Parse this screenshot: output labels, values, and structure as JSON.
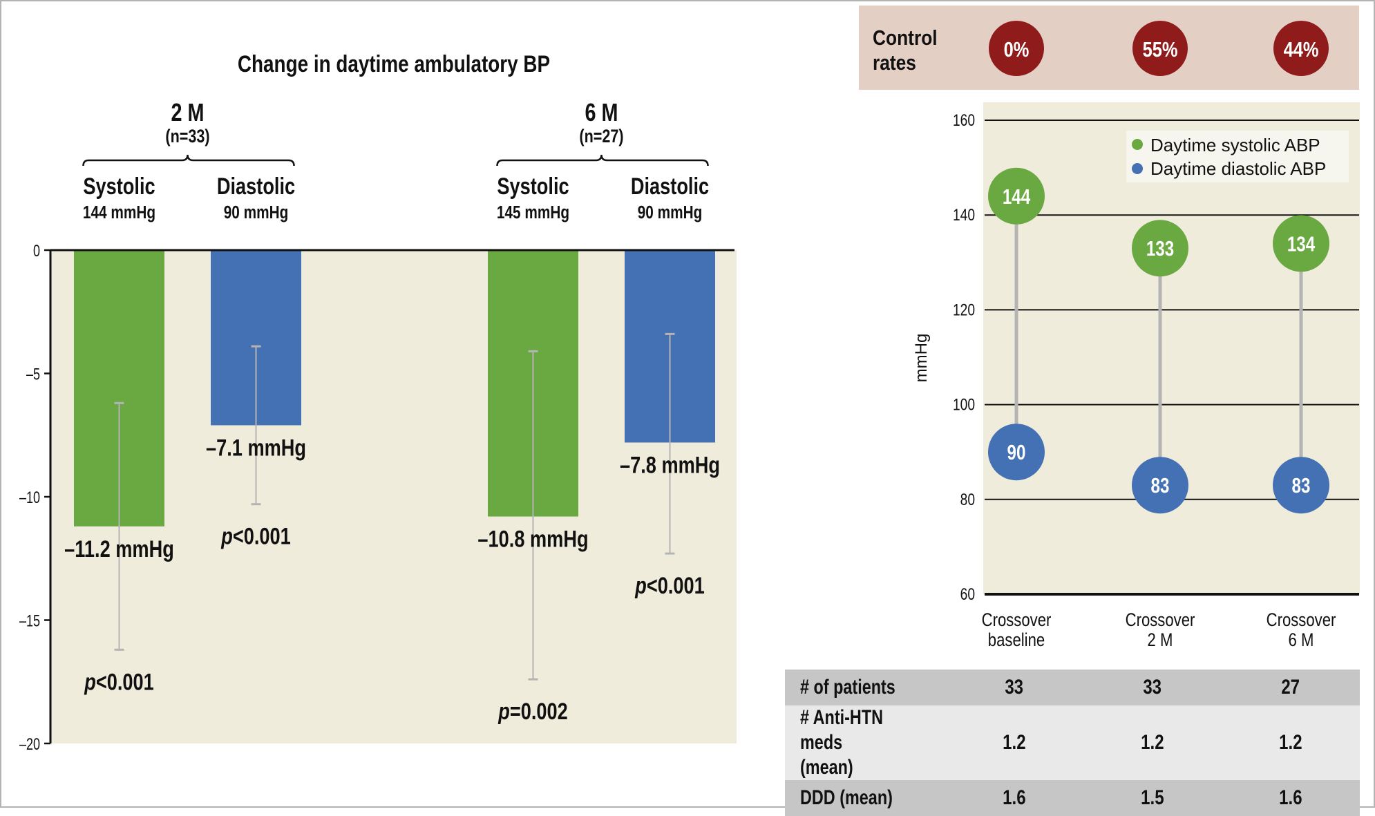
{
  "colors": {
    "systolic": "#6aa842",
    "diastolic": "#4470b4",
    "plot_bg": "#f0ecdb",
    "control_band": "#e4cfc4",
    "control_bubble": "#8f1b1b",
    "error_bar": "#b4b4b4",
    "legend_bg": "#f6f5ee"
  },
  "chart_data": [
    {
      "type": "bar",
      "title": "Change in daytime ambulatory BP",
      "ylabel": "",
      "ylim": [
        -20,
        0
      ],
      "yticks": [
        0,
        -5,
        -10,
        -15,
        -20
      ],
      "ytick_labels": [
        "0",
        "–5",
        "–10",
        "–15",
        "–20"
      ],
      "groups": [
        {
          "label": "2 M",
          "n_label": "(n=33)",
          "bars": [
            {
              "name": "Systolic",
              "baseline_label": "144 mmHg",
              "value": -11.2,
              "error_low": -16.2,
              "error_high": -6.2,
              "value_label": "–11.2 mmHg",
              "p_label_prefix": "p",
              "p_label_rest": "<0.001",
              "series": "systolic"
            },
            {
              "name": "Diastolic",
              "baseline_label": "90 mmHg",
              "value": -7.1,
              "error_low": -10.3,
              "error_high": -3.9,
              "value_label": "–7.1 mmHg",
              "p_label_prefix": "p",
              "p_label_rest": "<0.001",
              "series": "diastolic"
            }
          ]
        },
        {
          "label": "6 M",
          "n_label": "(n=27)",
          "bars": [
            {
              "name": "Systolic",
              "baseline_label": "145 mmHg",
              "value": -10.8,
              "error_low": -17.4,
              "error_high": -4.1,
              "value_label": "–10.8 mmHg",
              "p_label_prefix": "p",
              "p_label_rest": "=0.002",
              "series": "systolic"
            },
            {
              "name": "Diastolic",
              "baseline_label": "90 mmHg",
              "value": -7.8,
              "error_low": -12.3,
              "error_high": -3.4,
              "value_label": "–7.8 mmHg",
              "p_label_prefix": "p",
              "p_label_rest": "<0.001",
              "series": "diastolic"
            }
          ]
        }
      ]
    },
    {
      "type": "scatter",
      "title": "",
      "ylabel": "mmHg",
      "ylim": [
        60,
        160
      ],
      "yticks": [
        160,
        140,
        120,
        100,
        80,
        60
      ],
      "grid": true,
      "legend_position": "top-right",
      "categories": [
        "Crossover\nbaseline",
        "Crossover\n2 M",
        "Crossover\n6 M"
      ],
      "series": [
        {
          "name": "Daytime systolic ABP",
          "color_key": "systolic",
          "values": [
            144,
            133,
            134
          ]
        },
        {
          "name": "Daytime diastolic ABP",
          "color_key": "diastolic",
          "values": [
            90,
            83,
            83
          ]
        }
      ],
      "control_rates": {
        "label": "Control\nrates",
        "values": [
          "0%",
          "55%",
          "44%"
        ]
      }
    },
    {
      "type": "table",
      "rows": [
        {
          "label": "# of patients",
          "values": [
            "33",
            "33",
            "27"
          ]
        },
        {
          "label": "# Anti-HTN meds\n(mean)",
          "values": [
            "1.2",
            "1.2",
            "1.2"
          ]
        },
        {
          "label": "DDD (mean)",
          "values": [
            "1.6",
            "1.5",
            "1.6"
          ]
        }
      ]
    }
  ]
}
